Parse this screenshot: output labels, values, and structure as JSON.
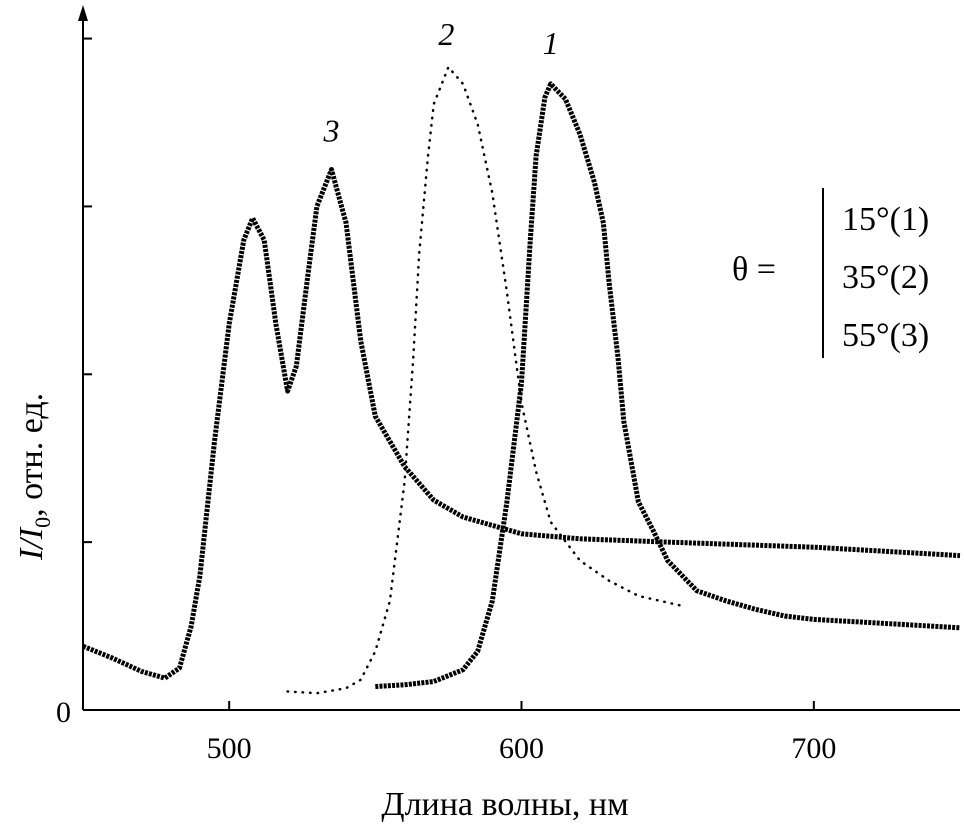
{
  "chart_data": {
    "type": "line",
    "title": "",
    "xlabel": "Длина волны, нм",
    "ylabel": {
      "main": "I/I",
      "sub": "0",
      "rest": ", отн. ед."
    },
    "xlim": [
      450,
      750
    ],
    "ylim": [
      0,
      4.2
    ],
    "x_ticks": [
      500,
      600,
      700
    ],
    "y_ticks": [
      0,
      1,
      2,
      3,
      4
    ],
    "y_tick_labels": [
      "0",
      "",
      "",
      "",
      ""
    ],
    "grid": false,
    "legend": {
      "position": "right",
      "prefix": "θ =",
      "entries": [
        "15°(1)",
        "35°(2)",
        "55°(3)"
      ]
    },
    "series": [
      {
        "id": "1",
        "label": "1",
        "style": "thick",
        "color": "#000000",
        "points": [
          [
            550,
            0.14
          ],
          [
            560,
            0.15
          ],
          [
            570,
            0.17
          ],
          [
            580,
            0.24
          ],
          [
            585,
            0.35
          ],
          [
            590,
            0.65
          ],
          [
            595,
            1.24
          ],
          [
            600,
            1.95
          ],
          [
            603,
            2.8
          ],
          [
            605,
            3.3
          ],
          [
            608,
            3.65
          ],
          [
            610,
            3.73
          ],
          [
            615,
            3.64
          ],
          [
            620,
            3.43
          ],
          [
            625,
            3.14
          ],
          [
            628,
            2.9
          ],
          [
            630,
            2.54
          ],
          [
            633,
            2.1
          ],
          [
            635,
            1.72
          ],
          [
            640,
            1.24
          ],
          [
            645,
            1.07
          ],
          [
            650,
            0.89
          ],
          [
            655,
            0.8
          ],
          [
            660,
            0.71
          ],
          [
            670,
            0.65
          ],
          [
            680,
            0.6
          ],
          [
            690,
            0.56
          ],
          [
            700,
            0.54
          ],
          [
            720,
            0.52
          ],
          [
            750,
            0.49
          ]
        ]
      },
      {
        "id": "2",
        "label": "2",
        "style": "dotted",
        "color": "#000000",
        "points": [
          [
            520,
            0.11
          ],
          [
            530,
            0.1
          ],
          [
            540,
            0.13
          ],
          [
            545,
            0.18
          ],
          [
            550,
            0.35
          ],
          [
            555,
            0.65
          ],
          [
            560,
            1.36
          ],
          [
            563,
            2.1
          ],
          [
            565,
            2.72
          ],
          [
            568,
            3.3
          ],
          [
            570,
            3.61
          ],
          [
            575,
            3.83
          ],
          [
            580,
            3.73
          ],
          [
            585,
            3.49
          ],
          [
            590,
            3.08
          ],
          [
            595,
            2.49
          ],
          [
            600,
            1.83
          ],
          [
            605,
            1.42
          ],
          [
            610,
            1.12
          ],
          [
            620,
            0.89
          ],
          [
            630,
            0.77
          ],
          [
            640,
            0.68
          ],
          [
            655,
            0.62
          ]
        ]
      },
      {
        "id": "3",
        "label": "3",
        "style": "thick",
        "color": "#000000",
        "points": [
          [
            450,
            0.38
          ],
          [
            460,
            0.31
          ],
          [
            470,
            0.23
          ],
          [
            478,
            0.19
          ],
          [
            483,
            0.25
          ],
          [
            487,
            0.5
          ],
          [
            490,
            0.8
          ],
          [
            495,
            1.6
          ],
          [
            500,
            2.3
          ],
          [
            505,
            2.8
          ],
          [
            508,
            2.93
          ],
          [
            512,
            2.8
          ],
          [
            516,
            2.3
          ],
          [
            520,
            1.9
          ],
          [
            523,
            2.05
          ],
          [
            527,
            2.6
          ],
          [
            530,
            3.0
          ],
          [
            535,
            3.22
          ],
          [
            540,
            2.9
          ],
          [
            545,
            2.2
          ],
          [
            550,
            1.75
          ],
          [
            560,
            1.45
          ],
          [
            570,
            1.25
          ],
          [
            580,
            1.15
          ],
          [
            590,
            1.1
          ],
          [
            600,
            1.05
          ],
          [
            620,
            1.02
          ],
          [
            650,
            1.0
          ],
          [
            700,
            0.97
          ],
          [
            750,
            0.92
          ]
        ]
      }
    ]
  }
}
